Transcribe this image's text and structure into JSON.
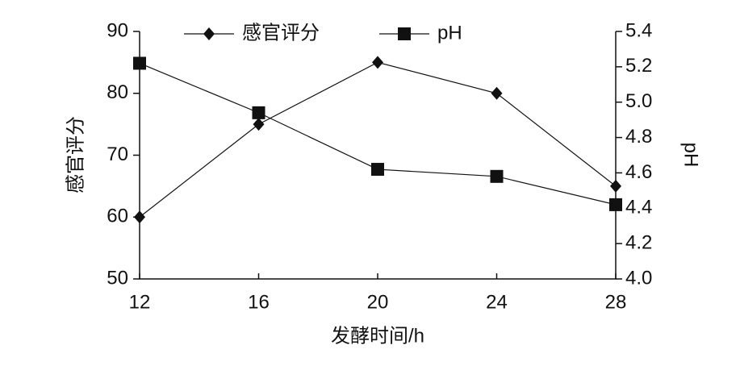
{
  "chart_data": {
    "type": "line",
    "xlabel": "发酵时间/h",
    "ylabel": "感官评分",
    "y2label": "pH",
    "x": [
      12,
      16,
      20,
      24,
      28
    ],
    "series": [
      {
        "name": "感官评分",
        "color": "#111111",
        "marker": "diamond",
        "values": [
          60,
          75,
          85,
          80,
          65
        ]
      },
      {
        "name": "pH",
        "color": "#111111",
        "marker": "square",
        "axis": "y2",
        "values": [
          5.22,
          4.94,
          4.62,
          4.58,
          4.42
        ]
      }
    ],
    "xlim": [
      12,
      28
    ],
    "xticks": [
      12,
      16,
      20,
      24,
      28
    ],
    "ylim": [
      50,
      90
    ],
    "yticks": [
      50,
      60,
      70,
      80,
      90
    ],
    "y2lim": [
      4,
      5.4
    ],
    "y2ticks": [
      {
        "value": 4,
        "label": "4.0"
      },
      4.2,
      4.4,
      4.6,
      4.8,
      {
        "value": 5,
        "label": "5.0"
      },
      5.2,
      5.4
    ],
    "legend": "upper center",
    "grid": false
  }
}
